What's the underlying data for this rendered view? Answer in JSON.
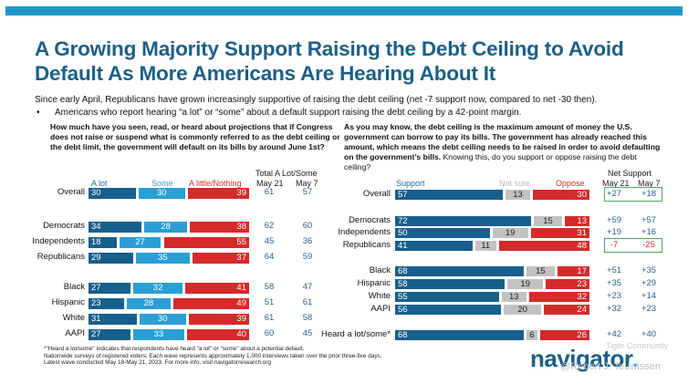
{
  "header": {
    "title": "A Growing Majority Support Raising the Debt Ceiling to Avoid Default As More Americans Are Hearing About It",
    "subtitle": "Since early April, Republicans have grown increasingly supportive of raising the debt ceiling (net -7 support now, compared to net -30 then).",
    "bullet": "Americans who report hearing “a lot” or “some” about a default support raising the debt ceiling by a 42-point margin.",
    "accent_color": "#1f95c8",
    "title_color": "#1a5f87"
  },
  "colors": {
    "alot": "#175f8c",
    "some": "#2a9fd6",
    "little": "#d42a2a",
    "support": "#175f8c",
    "notsure": "#c2c2c2",
    "oppose": "#d42a2a",
    "highlight_box": "#4caa5a"
  },
  "chart_data": [
    {
      "type": "bar",
      "orientation": "horizontal-stacked",
      "question": "How much have you seen, read, or heard about projections that if Congress does not raise or suspend what is commonly referred to as the debt ceiling or the debt limit, the government will default on its bills by around June 1st?",
      "legend": [
        "A lot",
        "Some",
        "A little/Nothing"
      ],
      "total_header": "Total A Lot/Some",
      "total_columns": [
        "May 21",
        "May 7"
      ],
      "categories": [
        "Overall",
        "Democrats",
        "Independents",
        "Republicans",
        "Black",
        "Hispanic",
        "White",
        "AAPI"
      ],
      "series": [
        {
          "name": "A lot",
          "values": [
            30,
            34,
            18,
            29,
            27,
            23,
            31,
            27
          ]
        },
        {
          "name": "Some",
          "values": [
            30,
            28,
            27,
            35,
            32,
            28,
            30,
            33
          ]
        },
        {
          "name": "A little/Nothing",
          "values": [
            39,
            38,
            55,
            37,
            41,
            49,
            39,
            40
          ]
        }
      ],
      "totals": {
        "May 21": [
          61,
          62,
          45,
          64,
          58,
          51,
          61,
          60
        ],
        "May 7": [
          57,
          60,
          36,
          59,
          47,
          61,
          58,
          45
        ]
      }
    },
    {
      "type": "bar",
      "orientation": "horizontal-stacked",
      "question_bold": "As you may know, the debt ceiling is the maximum amount of money the U.S. government can borrow to pay its bills. The government has already reached this amount, which means the debt ceiling needs to be raised in order to avoid defaulting on the government’s bills.",
      "question_plain": " Knowing this, do you support or oppose raising the debt ceiling?",
      "legend": [
        "Support",
        "Not sure",
        "Oppose"
      ],
      "net_header": "Net Support",
      "net_columns": [
        "May 21",
        "May 7"
      ],
      "categories": [
        "Overall",
        "Democrats",
        "Independents",
        "Republicans",
        "Black",
        "Hispanic",
        "White",
        "AAPI",
        "Heard a lot/some*"
      ],
      "series": [
        {
          "name": "Support",
          "values": [
            57,
            72,
            50,
            41,
            68,
            58,
            55,
            56,
            68
          ]
        },
        {
          "name": "Not sure",
          "values": [
            13,
            15,
            19,
            11,
            15,
            19,
            13,
            20,
            6
          ]
        },
        {
          "name": "Oppose",
          "values": [
            30,
            13,
            31,
            48,
            17,
            23,
            32,
            24,
            26
          ]
        }
      ],
      "net": {
        "May 21": [
          "+27",
          "+59",
          "+19",
          "-7",
          "+51",
          "+35",
          "+23",
          "+32",
          "+42"
        ],
        "May 7": [
          "+18",
          "+57",
          "+16",
          "-25",
          "+35",
          "+29",
          "+14",
          "+23",
          "+40"
        ]
      },
      "highlighted_rows": [
        "Overall",
        "Republicans"
      ]
    }
  ],
  "footnotes": [
    "*\"Heard a lot/some\" indicates that respondents have heard \"a lot\" or \"some\" about a potential default.",
    "Nationwide surveys of registered voters; Each wave represents approximately 1,000 interviews taken over the prior three-five days.",
    "Latest wave conducted May 18-May 21, 2023. For more info, visit navigatorresearch.org"
  ],
  "logo": {
    "text": "navigator",
    "dot": "."
  },
  "watermark": {
    "line1": "Tiger Community",
    "line2": "@Robert J. Teuwissen"
  }
}
